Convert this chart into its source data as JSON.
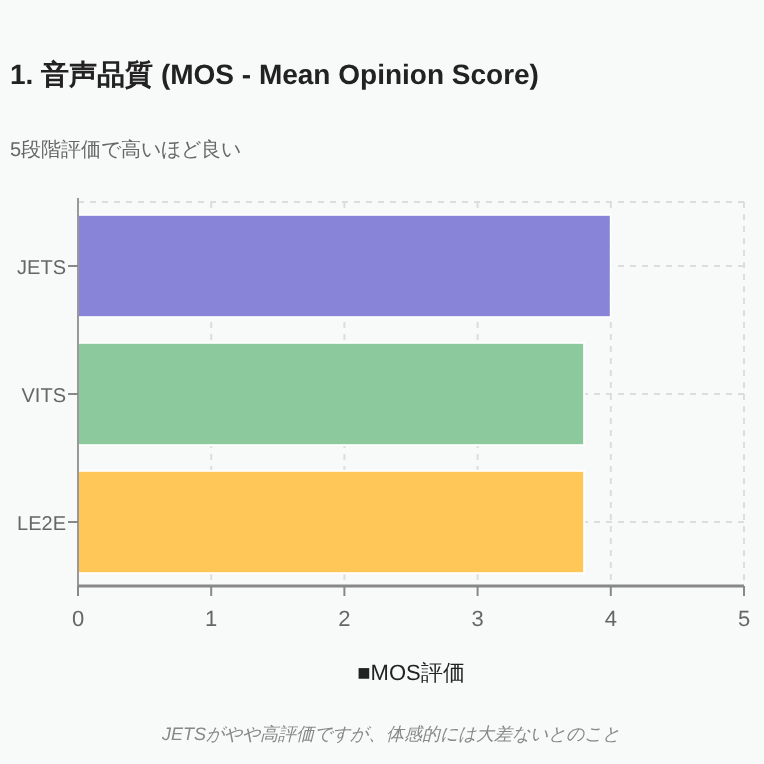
{
  "chart_data": {
    "type": "bar",
    "orientation": "horizontal",
    "title": "1. 音声品質 (MOS - Mean Opinion Score)",
    "subtitle": "5段階評価で高いほど良い",
    "xlabel": "■MOS評価",
    "categories": [
      "JETS",
      "VITS",
      "LE2E"
    ],
    "values": [
      4.0,
      3.8,
      3.8
    ],
    "colors": [
      "#8884d8",
      "#8cca9d",
      "#ffc658"
    ],
    "xlim": [
      0,
      5
    ],
    "xticks": [
      0,
      1,
      2,
      3,
      4,
      5
    ],
    "grid": true,
    "annotations": [
      "JETSがやや高評価ですが、体感的には大差ないとのこと"
    ]
  }
}
